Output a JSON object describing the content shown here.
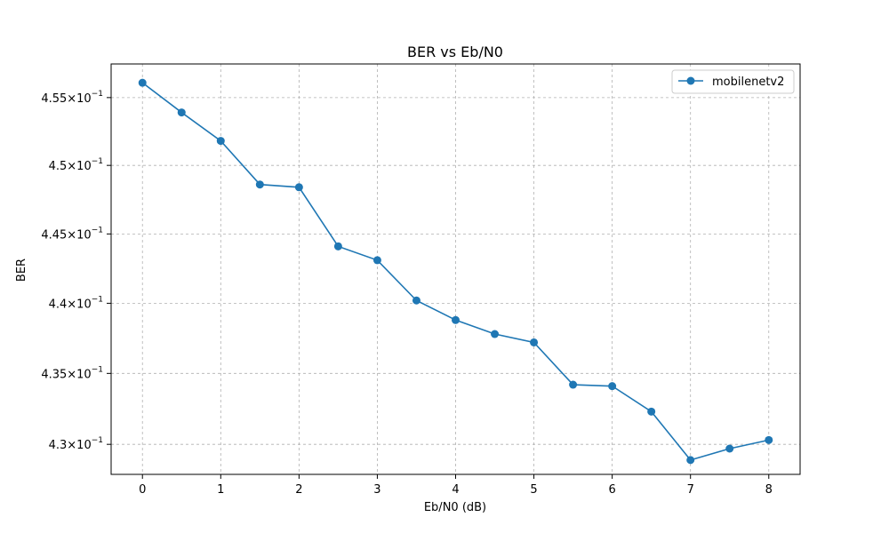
{
  "chart_data": {
    "type": "line",
    "title": "BER vs Eb/N0",
    "xlabel": "Eb/N0 (dB)",
    "ylabel": "BER",
    "xlim": [
      -0.4,
      8.4
    ],
    "ylim": [
      0.4279,
      0.4575
    ],
    "yscale": "log",
    "grid": true,
    "legend_position": "top-right",
    "x_ticks": [
      0,
      1,
      2,
      3,
      4,
      5,
      6,
      7,
      8
    ],
    "x_tick_labels": [
      "0",
      "1",
      "2",
      "3",
      "4",
      "5",
      "6",
      "7",
      "8"
    ],
    "y_ticks": [
      0.43,
      0.435,
      0.44,
      0.445,
      0.45,
      0.455
    ],
    "y_tick_labels": [
      {
        "mantissa": "4.3",
        "exp": "−1"
      },
      {
        "mantissa": "4.35",
        "exp": "−1"
      },
      {
        "mantissa": "4.4",
        "exp": "−1"
      },
      {
        "mantissa": "4.45",
        "exp": "−1"
      },
      {
        "mantissa": "4.5",
        "exp": "−1"
      },
      {
        "mantissa": "4.55",
        "exp": "−1"
      }
    ],
    "series": [
      {
        "name": "mobilenetv2",
        "color": "#1f77b4",
        "marker": "circle",
        "x": [
          0,
          0.5,
          1,
          1.5,
          2,
          2.5,
          3,
          3.5,
          4,
          4.5,
          5,
          5.5,
          6,
          6.5,
          7,
          7.5,
          8
        ],
        "y": [
          0.4561,
          0.4539,
          0.4518,
          0.4486,
          0.4484,
          0.4441,
          0.4431,
          0.4402,
          0.4388,
          0.4378,
          0.4372,
          0.4342,
          0.4341,
          0.4323,
          0.4289,
          0.4297,
          0.4303
        ]
      }
    ]
  }
}
